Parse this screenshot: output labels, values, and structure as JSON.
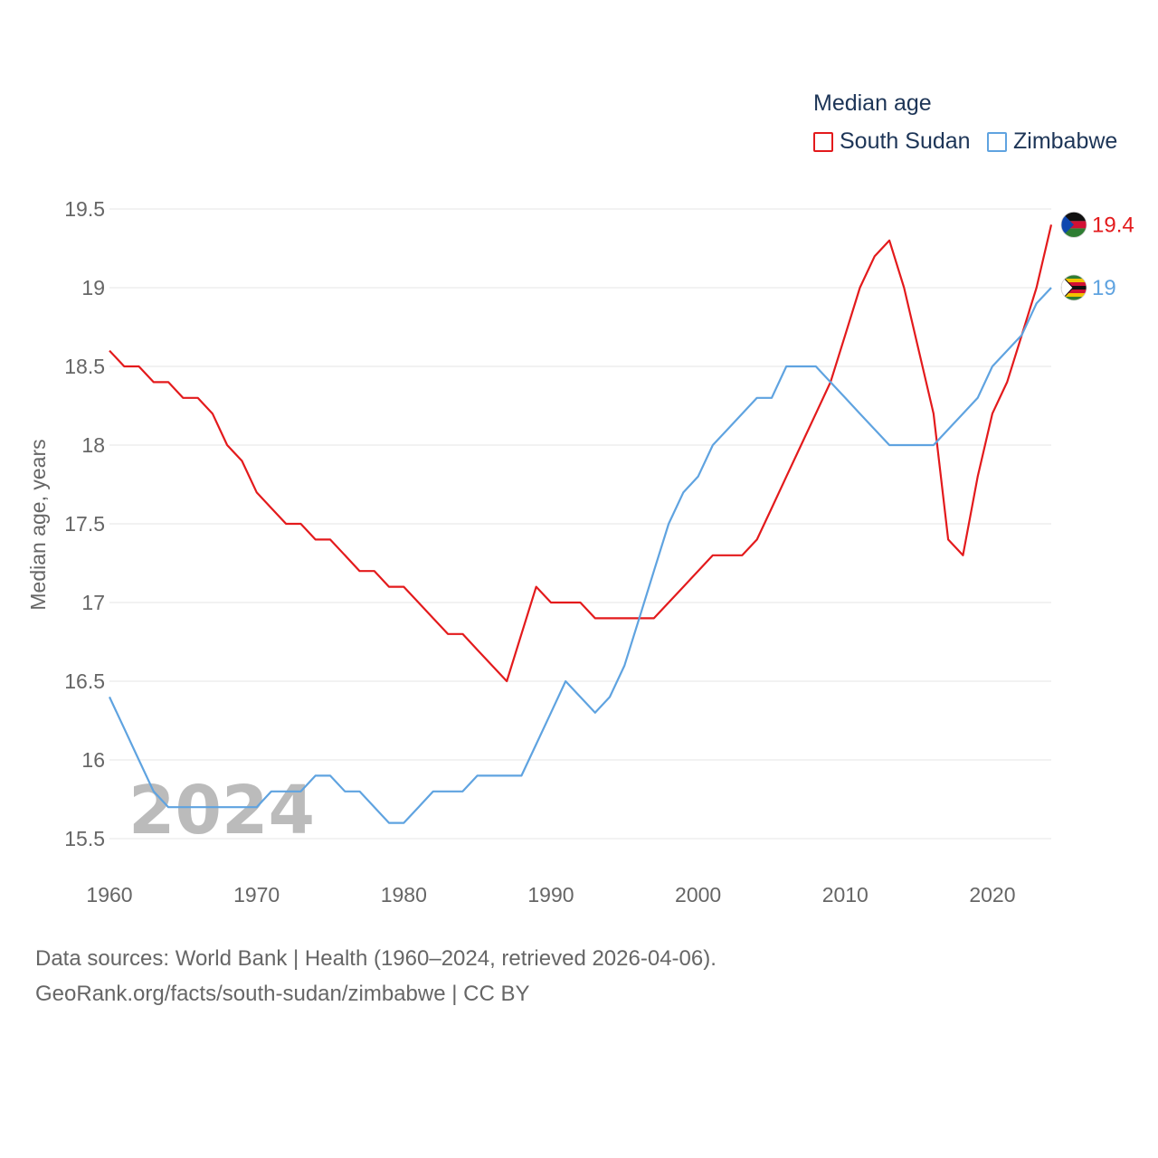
{
  "legend": {
    "title": "Median age",
    "items": [
      {
        "label": "South Sudan",
        "color": "#e31a1c"
      },
      {
        "label": "Zimbabwe",
        "color": "#5fa3e0"
      }
    ]
  },
  "watermark_year": "2024",
  "source": {
    "line1": "Data sources: World Bank | Health (1960–2024, retrieved 2026-04-06).",
    "line2": "GeoRank.org/facts/south-sudan/zimbabwe | CC BY"
  },
  "chart_data": {
    "type": "line",
    "title": "Median age",
    "xlabel": "",
    "ylabel": "Median age, years",
    "xlim": [
      1960,
      2024
    ],
    "ylim": [
      15.5,
      19.5
    ],
    "x_ticks": [
      1960,
      1970,
      1980,
      1990,
      2000,
      2010,
      2020
    ],
    "y_ticks": [
      15.5,
      16,
      16.5,
      17,
      17.5,
      18,
      18.5,
      19,
      19.5
    ],
    "grid": true,
    "legend_position": "top-right",
    "x": [
      1960,
      1961,
      1962,
      1963,
      1964,
      1965,
      1966,
      1967,
      1968,
      1969,
      1970,
      1971,
      1972,
      1973,
      1974,
      1975,
      1976,
      1977,
      1978,
      1979,
      1980,
      1981,
      1982,
      1983,
      1984,
      1985,
      1986,
      1987,
      1988,
      1989,
      1990,
      1991,
      1992,
      1993,
      1994,
      1995,
      1996,
      1997,
      1998,
      1999,
      2000,
      2001,
      2002,
      2003,
      2004,
      2005,
      2006,
      2007,
      2008,
      2009,
      2010,
      2011,
      2012,
      2013,
      2014,
      2015,
      2016,
      2017,
      2018,
      2019,
      2020,
      2021,
      2022,
      2023,
      2024
    ],
    "series": [
      {
        "name": "South Sudan",
        "color": "#e31a1c",
        "end_label": "19.4",
        "values": [
          18.6,
          18.5,
          18.5,
          18.4,
          18.4,
          18.3,
          18.3,
          18.2,
          18.0,
          17.9,
          17.7,
          17.6,
          17.5,
          17.5,
          17.4,
          17.4,
          17.3,
          17.2,
          17.2,
          17.1,
          17.1,
          17.0,
          16.9,
          16.8,
          16.8,
          16.7,
          16.6,
          16.5,
          16.8,
          17.1,
          17.0,
          17.0,
          17.0,
          16.9,
          16.9,
          16.9,
          16.9,
          16.9,
          17.0,
          17.1,
          17.2,
          17.3,
          17.3,
          17.3,
          17.4,
          17.6,
          17.8,
          18.0,
          18.2,
          18.4,
          18.7,
          19.0,
          19.2,
          19.3,
          19.0,
          18.6,
          18.2,
          17.4,
          17.3,
          17.8,
          18.2,
          18.4,
          18.7,
          19.0,
          19.4
        ]
      },
      {
        "name": "Zimbabwe",
        "color": "#5fa3e0",
        "end_label": "19",
        "values": [
          16.4,
          16.2,
          16.0,
          15.8,
          15.7,
          15.7,
          15.7,
          15.7,
          15.7,
          15.7,
          15.7,
          15.8,
          15.8,
          15.8,
          15.9,
          15.9,
          15.8,
          15.8,
          15.7,
          15.6,
          15.6,
          15.7,
          15.8,
          15.8,
          15.8,
          15.9,
          15.9,
          15.9,
          15.9,
          16.1,
          16.3,
          16.5,
          16.4,
          16.3,
          16.4,
          16.6,
          16.9,
          17.2,
          17.5,
          17.7,
          17.8,
          18.0,
          18.1,
          18.2,
          18.3,
          18.3,
          18.5,
          18.5,
          18.5,
          18.4,
          18.3,
          18.2,
          18.1,
          18.0,
          18.0,
          18.0,
          18.0,
          18.1,
          18.2,
          18.3,
          18.5,
          18.6,
          18.7,
          18.9,
          19.0
        ]
      }
    ]
  }
}
